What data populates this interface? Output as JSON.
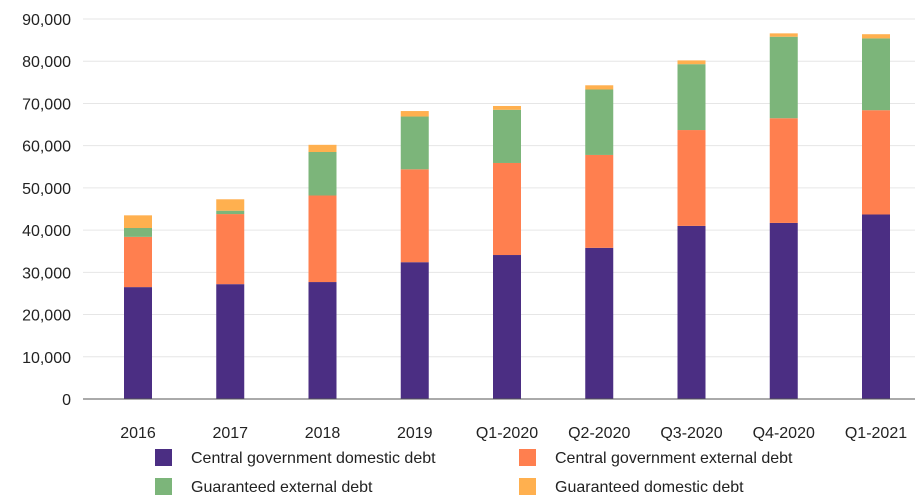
{
  "chart_data": {
    "type": "bar",
    "stacked": true,
    "categories": [
      "2016",
      "2017",
      "2018",
      "2019",
      "Q1-2020",
      "Q2-2020",
      "Q3-2020",
      "Q4-2020",
      "Q1-2021"
    ],
    "series": [
      {
        "name": "Central government domestic debt",
        "color": "#4b2e83",
        "values": [
          26500,
          27200,
          27700,
          32400,
          34100,
          35800,
          41000,
          41700,
          43700
        ]
      },
      {
        "name": "Central government external debt",
        "color": "#ff7f4f",
        "values": [
          11900,
          16600,
          20500,
          22000,
          21800,
          22000,
          22700,
          24800,
          24700
        ]
      },
      {
        "name": "Guaranteed external debt",
        "color": "#7cb57a",
        "values": [
          2100,
          800,
          10300,
          12500,
          12600,
          15500,
          15600,
          19300,
          17000
        ]
      },
      {
        "name": "Guaranteed domestic debt",
        "color": "#ffb04f",
        "values": [
          3000,
          2700,
          1700,
          1300,
          900,
          1000,
          900,
          800,
          1000
        ]
      }
    ],
    "y_ticks": [
      "0",
      "10,000",
      "20,000",
      "30,000",
      "40,000",
      "50,000",
      "60,000",
      "70,000",
      "80,000",
      "90,000"
    ],
    "ylim": [
      0,
      90000
    ],
    "grid": true,
    "legend_position": "bottom",
    "title": "",
    "xlabel": "",
    "ylabel": ""
  }
}
